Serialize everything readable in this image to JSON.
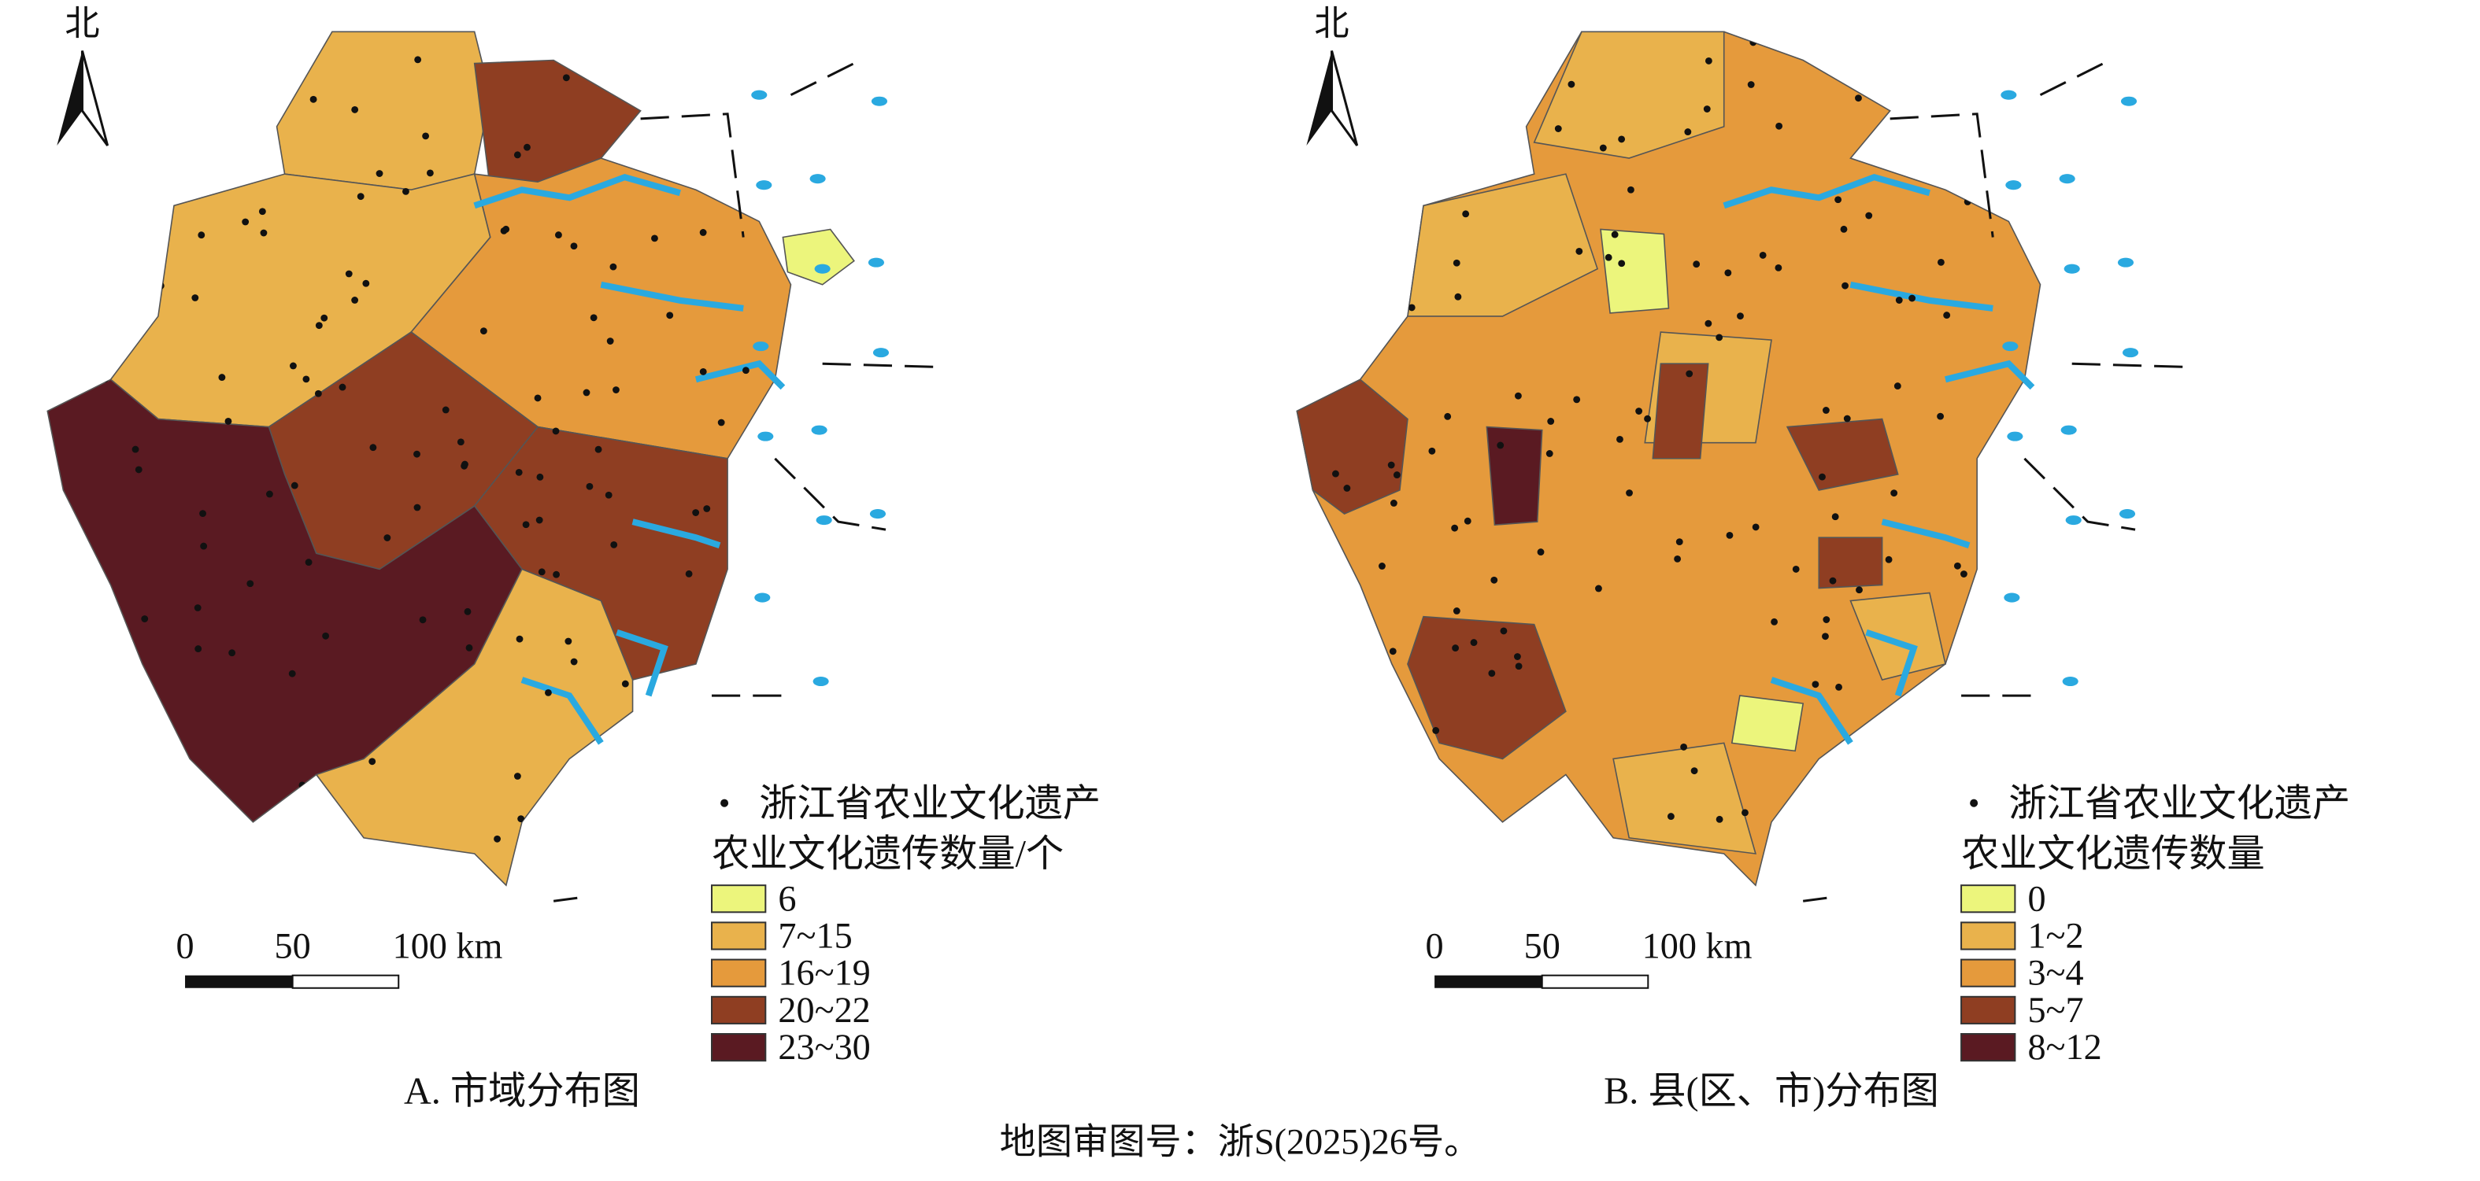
{
  "panels": [
    {
      "north": "北",
      "legend": {
        "point": "浙江省农业文化遗产",
        "title": "农业文化遗传数量/个",
        "items": [
          {
            "label": "6",
            "color": "#ecf57c"
          },
          {
            "label": "7~15",
            "color": "#e9b24c"
          },
          {
            "label": "16~19",
            "color": "#e59a3c"
          },
          {
            "label": "20~22",
            "color": "#8f3e22"
          },
          {
            "label": "23~30",
            "color": "#5a1a22"
          }
        ]
      },
      "scale": {
        "labels": [
          "0",
          "50",
          "100 km"
        ]
      },
      "caption": "A. 市域分布图"
    },
    {
      "north": "北",
      "legend": {
        "point": "浙江省农业文化遗产",
        "title": "农业文化遗传数量",
        "items": [
          {
            "label": "0",
            "color": "#ecf57c"
          },
          {
            "label": "1~2",
            "color": "#e9b24c"
          },
          {
            "label": "3~4",
            "color": "#e59a3c"
          },
          {
            "label": "5~7",
            "color": "#8f3e22"
          },
          {
            "label": "8~12",
            "color": "#5a1a22"
          }
        ]
      },
      "scale": {
        "labels": [
          "0",
          "50",
          "100 km"
        ]
      },
      "caption": "B. 县(区、市)分布图"
    }
  ],
  "footnote": "地图审图号：浙S(2025)26号。"
}
